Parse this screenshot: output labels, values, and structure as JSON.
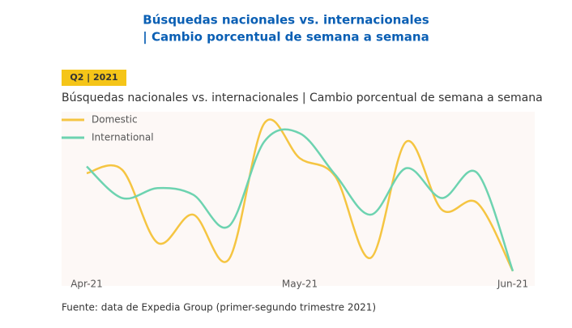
{
  "header": {
    "title_line1": "Búsquedas nacionales vs. internacionales",
    "title_line2": "| Cambio porcentual de semana a semana"
  },
  "tag": "Q2 | 2021",
  "chart_data": {
    "type": "line",
    "title": "Búsquedas nacionales vs. internacionales | Cambio porcentual de semana a semana",
    "categories": [
      "Apr-21",
      null,
      null,
      null,
      null,
      null,
      "May-21",
      null,
      null,
      null,
      null,
      null,
      "Jun-21"
    ],
    "series": [
      {
        "name": "Domestic",
        "color": "#f5c542",
        "values": [
          64,
          66,
          22,
          39,
          12,
          94,
          73,
          62,
          13,
          83,
          42,
          46,
          5
        ]
      },
      {
        "name": "International",
        "color": "#6dd3b0",
        "values": [
          68,
          49,
          55,
          51,
          32,
          83,
          88,
          63,
          39,
          67,
          49,
          64,
          5
        ]
      }
    ],
    "ylim": [
      0,
      100
    ],
    "source": "Fuente: data de Expedia Group (primer-segundo trimestre 2021)"
  }
}
